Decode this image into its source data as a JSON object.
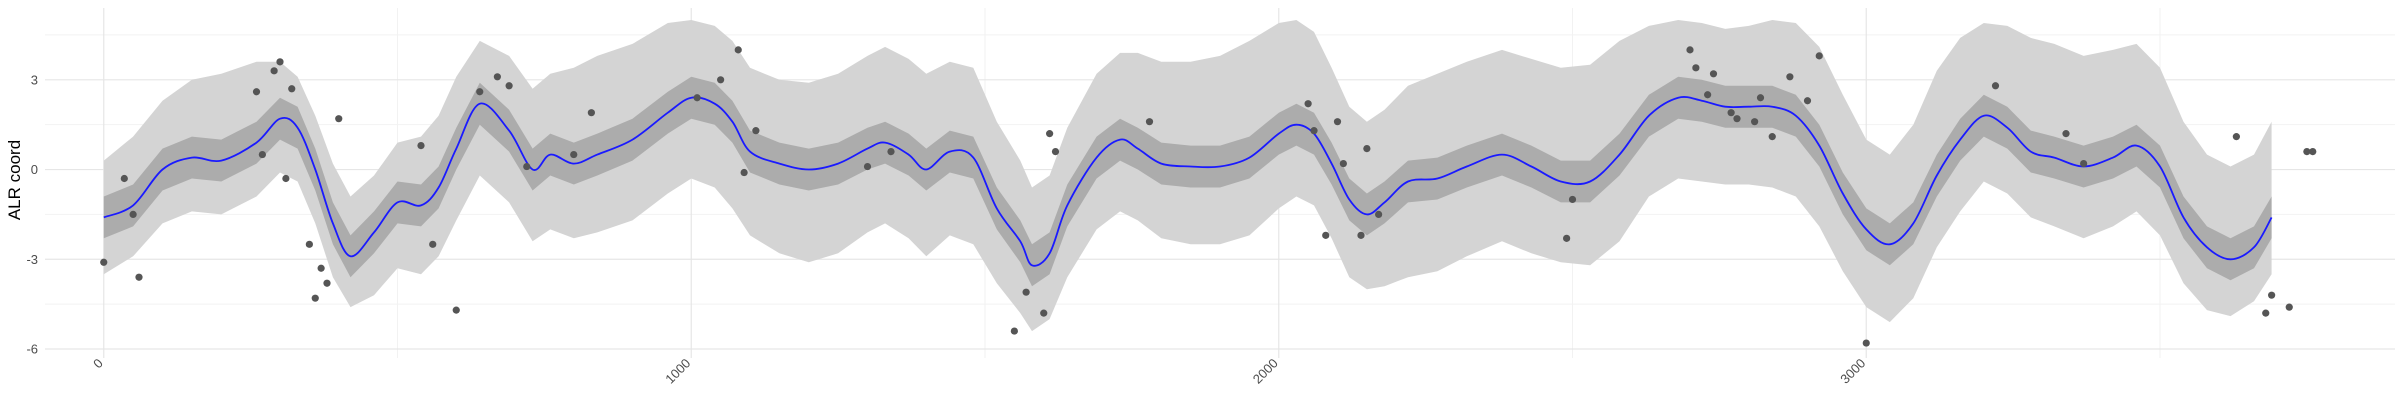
{
  "chart_data": {
    "type": "line",
    "title": "",
    "xlabel": "",
    "ylabel": "ALR coord",
    "xlim": [
      -100,
      3900
    ],
    "ylim": [
      -6.3,
      5.4
    ],
    "x_ticks": [
      0,
      1000,
      2000,
      3000
    ],
    "x_tick_labels": [
      "0",
      "1000",
      "2000",
      "3000"
    ],
    "y_ticks": [
      -6,
      -3,
      0,
      3
    ],
    "y_tick_labels": [
      "-6",
      "-3",
      "0",
      "3"
    ],
    "grid": true,
    "legend": "none",
    "colors": {
      "mean_line": "#1a1aff",
      "inner_band": "#acacac",
      "outer_band": "#d4d4d4",
      "points": "#555555",
      "grid_major": "#e6e6e6",
      "grid_minor": "#f2f2f2"
    },
    "series": [
      {
        "type": "line",
        "x": [
          0,
          50,
          100,
          150,
          200,
          260,
          300,
          330,
          360,
          390,
          420,
          460,
          500,
          540,
          570,
          600,
          640,
          690,
          730,
          760,
          800,
          840,
          900,
          960,
          1000,
          1040,
          1070,
          1100,
          1150,
          1200,
          1250,
          1300,
          1330,
          1370,
          1400,
          1440,
          1480,
          1520,
          1560,
          1580,
          1610,
          1640,
          1690,
          1730,
          1760,
          1800,
          1850,
          1900,
          1950,
          2000,
          2030,
          2060,
          2090,
          2120,
          2150,
          2180,
          2220,
          2270,
          2320,
          2380,
          2430,
          2480,
          2530,
          2580,
          2630,
          2680,
          2720,
          2760,
          2800,
          2840,
          2880,
          2920,
          2960,
          3000,
          3040,
          3080,
          3120,
          3160,
          3200,
          3240,
          3280,
          3320,
          3370,
          3420,
          3460,
          3500,
          3540,
          3580,
          3620,
          3660,
          3690
        ],
        "y": [
          -1.6,
          -1.2,
          0.0,
          0.4,
          0.3,
          0.9,
          1.7,
          1.4,
          0.0,
          -1.8,
          -2.9,
          -2.1,
          -1.1,
          -1.2,
          -0.6,
          0.7,
          2.2,
          1.3,
          0.0,
          0.5,
          0.2,
          0.5,
          1.0,
          1.9,
          2.4,
          2.2,
          1.6,
          0.6,
          0.2,
          0.0,
          0.2,
          0.7,
          0.9,
          0.5,
          0.0,
          0.6,
          0.4,
          -1.3,
          -2.4,
          -3.2,
          -2.8,
          -1.2,
          0.4,
          1.0,
          0.7,
          0.2,
          0.1,
          0.1,
          0.4,
          1.2,
          1.5,
          1.2,
          0.2,
          -1.0,
          -1.5,
          -1.1,
          -0.4,
          -0.3,
          0.1,
          0.5,
          0.1,
          -0.4,
          -0.4,
          0.5,
          1.8,
          2.4,
          2.3,
          2.1,
          2.1,
          2.1,
          1.8,
          0.8,
          -0.8,
          -2.0,
          -2.5,
          -1.8,
          -0.2,
          1.0,
          1.8,
          1.4,
          0.6,
          0.4,
          0.1,
          0.4,
          0.8,
          0.1,
          -1.6,
          -2.6,
          -3.0,
          -2.6,
          -1.6
        ]
      },
      {
        "type": "band",
        "name": "",
        "x": [
          0,
          50,
          100,
          150,
          200,
          260,
          300,
          330,
          360,
          390,
          420,
          460,
          500,
          540,
          570,
          600,
          640,
          690,
          730,
          760,
          800,
          840,
          900,
          960,
          1000,
          1040,
          1070,
          1100,
          1150,
          1200,
          1250,
          1300,
          1330,
          1370,
          1400,
          1440,
          1480,
          1520,
          1560,
          1580,
          1610,
          1640,
          1690,
          1730,
          1760,
          1800,
          1850,
          1900,
          1950,
          2000,
          2030,
          2060,
          2090,
          2120,
          2150,
          2180,
          2220,
          2270,
          2320,
          2380,
          2430,
          2480,
          2530,
          2580,
          2630,
          2680,
          2720,
          2760,
          2800,
          2840,
          2880,
          2920,
          2960,
          3000,
          3040,
          3080,
          3120,
          3160,
          3200,
          3240,
          3280,
          3320,
          3370,
          3420,
          3460,
          3500,
          3540,
          3580,
          3620,
          3660,
          3690
        ],
        "lower": [
          -2.3,
          -1.9,
          -0.7,
          -0.3,
          -0.4,
          0.2,
          1.0,
          0.7,
          -0.7,
          -2.5,
          -3.6,
          -2.8,
          -1.8,
          -1.9,
          -1.3,
          0.0,
          1.5,
          0.6,
          -0.7,
          -0.2,
          -0.5,
          -0.2,
          0.3,
          1.2,
          1.7,
          1.5,
          0.9,
          -0.1,
          -0.5,
          -0.7,
          -0.5,
          0.0,
          0.2,
          -0.2,
          -0.7,
          -0.1,
          -0.3,
          -2.0,
          -3.1,
          -3.9,
          -3.5,
          -1.9,
          -0.3,
          0.3,
          0.0,
          -0.5,
          -0.6,
          -0.6,
          -0.3,
          0.5,
          0.8,
          0.5,
          -0.5,
          -1.7,
          -2.2,
          -1.8,
          -1.1,
          -1.0,
          -0.6,
          -0.2,
          -0.6,
          -1.1,
          -1.1,
          -0.2,
          1.1,
          1.7,
          1.6,
          1.4,
          1.4,
          1.4,
          1.1,
          0.1,
          -1.5,
          -2.7,
          -3.2,
          -2.5,
          -0.9,
          0.3,
          1.1,
          0.7,
          -0.1,
          -0.3,
          -0.6,
          -0.3,
          0.1,
          -0.6,
          -2.3,
          -3.3,
          -3.7,
          -3.3,
          -2.3
        ],
        "upper": [
          -0.9,
          -0.5,
          0.7,
          1.1,
          1.0,
          1.6,
          2.4,
          2.1,
          0.7,
          -1.1,
          -2.2,
          -1.4,
          -0.4,
          -0.5,
          0.1,
          1.4,
          2.9,
          2.0,
          0.7,
          1.2,
          0.9,
          1.2,
          1.7,
          2.6,
          3.1,
          2.9,
          2.3,
          1.3,
          0.9,
          0.7,
          0.9,
          1.4,
          1.6,
          1.2,
          0.7,
          1.3,
          1.1,
          -0.6,
          -1.7,
          -2.5,
          -2.1,
          -0.5,
          1.1,
          1.7,
          1.4,
          0.9,
          0.8,
          0.8,
          1.1,
          1.9,
          2.2,
          1.9,
          0.9,
          -0.3,
          -0.8,
          -0.4,
          0.3,
          0.4,
          0.8,
          1.2,
          0.8,
          0.3,
          0.3,
          1.2,
          2.5,
          3.1,
          3.0,
          2.8,
          2.8,
          2.8,
          2.5,
          1.5,
          -0.1,
          -1.3,
          -1.8,
          -1.1,
          0.5,
          1.7,
          2.5,
          2.1,
          1.3,
          1.1,
          0.8,
          1.1,
          1.5,
          0.8,
          -0.9,
          -1.9,
          -2.3,
          -1.9,
          -0.9
        ]
      },
      {
        "type": "band",
        "name": "",
        "x": [
          0,
          50,
          100,
          150,
          200,
          260,
          300,
          330,
          360,
          390,
          420,
          460,
          500,
          540,
          570,
          600,
          640,
          690,
          730,
          760,
          800,
          840,
          900,
          960,
          1000,
          1040,
          1070,
          1100,
          1150,
          1200,
          1250,
          1300,
          1330,
          1370,
          1400,
          1440,
          1480,
          1520,
          1560,
          1580,
          1610,
          1640,
          1690,
          1730,
          1760,
          1800,
          1850,
          1900,
          1950,
          2000,
          2030,
          2060,
          2090,
          2120,
          2150,
          2180,
          2220,
          2270,
          2320,
          2380,
          2430,
          2480,
          2530,
          2580,
          2630,
          2680,
          2720,
          2760,
          2800,
          2840,
          2880,
          2920,
          2960,
          3000,
          3040,
          3080,
          3120,
          3160,
          3200,
          3240,
          3280,
          3320,
          3370,
          3420,
          3460,
          3500,
          3540,
          3580,
          3620,
          3660,
          3690
        ],
        "lower": [
          -3.5,
          -2.9,
          -1.8,
          -1.4,
          -1.5,
          -0.9,
          -0.1,
          -0.4,
          -1.8,
          -3.6,
          -4.6,
          -4.2,
          -3.3,
          -3.5,
          -2.9,
          -1.7,
          -0.2,
          -1.1,
          -2.4,
          -2.0,
          -2.3,
          -2.1,
          -1.7,
          -0.8,
          -0.3,
          -0.6,
          -1.3,
          -2.2,
          -2.8,
          -3.1,
          -2.8,
          -2.1,
          -1.8,
          -2.3,
          -2.9,
          -2.2,
          -2.5,
          -3.8,
          -4.8,
          -5.4,
          -5.0,
          -3.6,
          -2.0,
          -1.4,
          -1.7,
          -2.3,
          -2.5,
          -2.5,
          -2.2,
          -1.3,
          -0.9,
          -1.2,
          -2.3,
          -3.6,
          -4.0,
          -3.9,
          -3.6,
          -3.4,
          -2.9,
          -2.4,
          -2.8,
          -3.1,
          -3.2,
          -2.4,
          -0.9,
          -0.3,
          -0.4,
          -0.5,
          -0.5,
          -0.6,
          -0.9,
          -1.9,
          -3.4,
          -4.6,
          -5.1,
          -4.3,
          -2.6,
          -1.4,
          -0.4,
          -0.8,
          -1.6,
          -1.9,
          -2.3,
          -1.9,
          -1.4,
          -2.2,
          -3.8,
          -4.7,
          -4.9,
          -4.4,
          -3.5
        ],
        "upper": [
          0.3,
          1.1,
          2.3,
          3.0,
          3.2,
          3.6,
          3.6,
          3.1,
          1.8,
          0.2,
          -0.9,
          -0.2,
          0.9,
          1.1,
          1.8,
          3.1,
          4.3,
          3.8,
          2.7,
          3.2,
          3.4,
          3.8,
          4.2,
          4.9,
          5.0,
          4.8,
          4.3,
          3.4,
          3.0,
          2.9,
          3.2,
          3.8,
          4.1,
          3.7,
          3.2,
          3.6,
          3.4,
          1.6,
          0.3,
          -0.6,
          -0.2,
          1.4,
          3.2,
          3.9,
          3.9,
          3.6,
          3.6,
          3.8,
          4.3,
          4.9,
          5.0,
          4.6,
          3.4,
          2.1,
          1.6,
          2.0,
          2.8,
          3.2,
          3.6,
          4.0,
          3.7,
          3.4,
          3.5,
          4.3,
          4.8,
          5.0,
          4.9,
          4.7,
          4.8,
          5.0,
          4.9,
          4.1,
          2.5,
          1.0,
          0.5,
          1.5,
          3.3,
          4.4,
          4.9,
          4.8,
          4.4,
          4.2,
          3.8,
          4.0,
          4.2,
          3.4,
          1.6,
          0.5,
          0.1,
          0.5,
          1.6
        ]
      },
      {
        "type": "scatter",
        "x": [
          0,
          35,
          50,
          60,
          260,
          270,
          290,
          300,
          310,
          320,
          350,
          360,
          370,
          380,
          400,
          540,
          560,
          600,
          640,
          670,
          690,
          720,
          800,
          830,
          1010,
          1050,
          1080,
          1090,
          1110,
          1300,
          1340,
          1550,
          1570,
          1600,
          1610,
          1620,
          1780,
          2050,
          2060,
          2080,
          2100,
          2110,
          2140,
          2150,
          2170,
          2490,
          2500,
          2700,
          2710,
          2730,
          2740,
          2770,
          2780,
          2810,
          2820,
          2840,
          2870,
          2900,
          2920,
          3000,
          3220,
          3340,
          3370,
          3630,
          3680,
          3690,
          3720,
          3750,
          3760
        ],
        "y": [
          -3.1,
          -0.3,
          -1.5,
          -3.6,
          2.6,
          0.5,
          3.3,
          3.6,
          -0.3,
          2.7,
          -2.5,
          -4.3,
          -3.3,
          -3.8,
          1.7,
          0.8,
          -2.5,
          -4.7,
          2.6,
          3.1,
          2.8,
          0.1,
          0.5,
          1.9,
          2.4,
          3.0,
          4.0,
          -0.1,
          1.3,
          0.1,
          0.6,
          -5.4,
          -4.1,
          -4.8,
          1.2,
          0.6,
          1.6,
          2.2,
          1.3,
          -2.2,
          1.6,
          0.2,
          -2.2,
          0.7,
          -1.5,
          -2.3,
          -1.0,
          4.0,
          3.4,
          2.5,
          3.2,
          1.9,
          1.7,
          1.6,
          2.4,
          1.1,
          3.1,
          2.3,
          3.8,
          -5.8,
          2.8,
          1.2,
          0.2,
          1.1,
          -4.8,
          -4.2,
          -4.6,
          0.6,
          0.6
        ]
      }
    ]
  }
}
